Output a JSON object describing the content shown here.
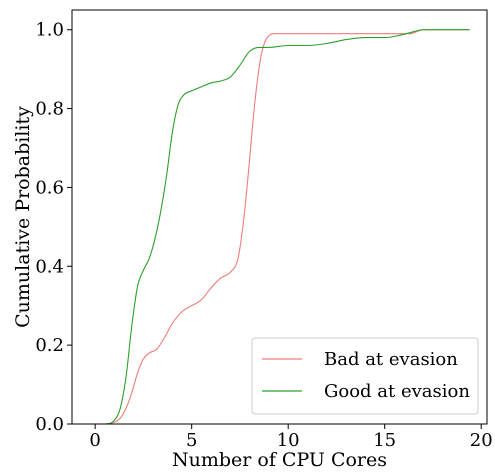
{
  "chart_data": {
    "type": "line",
    "title": "",
    "xlabel": "Number of CPU Cores",
    "ylabel": "Cumulative Probability",
    "xlim": [
      -1.2,
      20.3
    ],
    "ylim": [
      0.0,
      1.05
    ],
    "xticks": [
      0,
      5,
      10,
      15,
      20
    ],
    "yticks": [
      0.0,
      0.2,
      0.4,
      0.6,
      0.8,
      1.0
    ],
    "xtick_labels": [
      "0",
      "5",
      "10",
      "15",
      "20"
    ],
    "ytick_labels": [
      "0.0",
      "0.2",
      "0.4",
      "0.6",
      "0.8",
      "1.0"
    ],
    "grid": false,
    "legend_position": "lower-right",
    "series": [
      {
        "name": "Bad at evasion",
        "color": "#f07c7c",
        "x": [
          0,
          0.5,
          1.0,
          1.3,
          1.6,
          1.9,
          2.2,
          2.5,
          2.8,
          3.2,
          3.6,
          4.0,
          4.5,
          5.0,
          5.5,
          6.0,
          6.5,
          7.0,
          7.4,
          7.7,
          8.0,
          8.2,
          8.4,
          8.6,
          8.8,
          9.0,
          9.3,
          10,
          12,
          14,
          15.5,
          16.3,
          17,
          18,
          19.4
        ],
        "y": [
          0.0,
          0.0,
          0.005,
          0.015,
          0.04,
          0.08,
          0.13,
          0.165,
          0.18,
          0.19,
          0.22,
          0.255,
          0.285,
          0.3,
          0.315,
          0.345,
          0.37,
          0.385,
          0.42,
          0.52,
          0.67,
          0.78,
          0.87,
          0.935,
          0.97,
          0.985,
          0.99,
          0.99,
          0.99,
          0.99,
          0.99,
          0.99,
          1.0,
          1.0,
          1.0
        ]
      },
      {
        "name": "Good at evasion",
        "color": "#2ca02c",
        "x": [
          0,
          0.5,
          1.0,
          1.3,
          1.6,
          1.9,
          2.2,
          2.5,
          2.8,
          3.1,
          3.4,
          3.7,
          4.0,
          4.3,
          4.6,
          5.0,
          5.5,
          6.0,
          6.5,
          7.0,
          7.5,
          8.0,
          8.5,
          9.0,
          10,
          11,
          12,
          13,
          14,
          15,
          15.7,
          16.5,
          17,
          18,
          19.4
        ],
        "y": [
          0.0,
          0.0,
          0.01,
          0.04,
          0.12,
          0.25,
          0.35,
          0.39,
          0.42,
          0.47,
          0.54,
          0.63,
          0.74,
          0.81,
          0.835,
          0.845,
          0.855,
          0.865,
          0.87,
          0.88,
          0.91,
          0.945,
          0.955,
          0.955,
          0.96,
          0.96,
          0.965,
          0.975,
          0.98,
          0.98,
          0.985,
          0.995,
          1.0,
          1.0,
          1.0
        ]
      }
    ]
  }
}
